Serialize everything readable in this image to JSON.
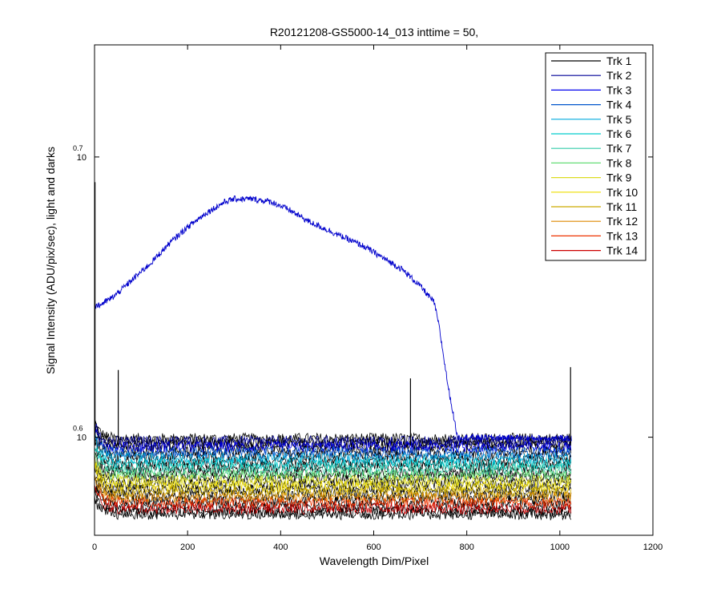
{
  "chart_data": {
    "type": "line",
    "title": "R20121208-GS5000-14_013 inttime = 50,",
    "xlabel": "Wavelength Dim/Pixel",
    "ylabel": "Signal Intensity (ADU/pix/sec), light and darks",
    "xlim": [
      0,
      1200
    ],
    "ylog": true,
    "ylim_exponent": [
      0.565,
      0.74
    ],
    "xticks": [
      "0",
      "200",
      "400",
      "600",
      "800",
      "1000",
      "1200"
    ],
    "yticks": [
      {
        "base": "10",
        "exponent": "0.6",
        "value_exponent": 0.6
      },
      {
        "base": "10",
        "exponent": "0.7",
        "value_exponent": 0.7
      }
    ],
    "grid": false,
    "legend_position": "top-right",
    "light_track": {
      "name": "Trk 2",
      "color": "#0000cc",
      "x": [
        0,
        10,
        40,
        80,
        120,
        160,
        200,
        240,
        280,
        300,
        340,
        380,
        420,
        460,
        500,
        540,
        580,
        620,
        660,
        700,
        730,
        740,
        760,
        780,
        1025
      ],
      "exponent": [
        0.647,
        0.647,
        0.65,
        0.656,
        0.662,
        0.669,
        0.675,
        0.68,
        0.684,
        0.685,
        0.685,
        0.684,
        0.681,
        0.677,
        0.674,
        0.671,
        0.668,
        0.664,
        0.66,
        0.654,
        0.648,
        0.64,
        0.618,
        0.6,
        0.5995
      ]
    },
    "spikes": [
      {
        "x": 1,
        "top_exponent": 0.691
      },
      {
        "x": 51,
        "top_exponent": 0.624
      },
      {
        "x": 679,
        "top_exponent": 0.621
      },
      {
        "x": 1023,
        "top_exponent": 0.625
      }
    ],
    "series": [
      {
        "name": "Trk 1",
        "color": "#000000",
        "plateau_exponent": 0.5995,
        "start_exponent": 0.606
      },
      {
        "name": "Trk 2",
        "color": "#000099",
        "plateau_exponent": 0.5985,
        "start_exponent": 0.605
      },
      {
        "name": "Trk 3",
        "color": "#0000ee",
        "plateau_exponent": 0.5965,
        "start_exponent": 0.604
      },
      {
        "name": "Trk 4",
        "color": "#0055cc",
        "plateau_exponent": 0.5945,
        "start_exponent": 0.602
      },
      {
        "name": "Trk 5",
        "color": "#00aadd",
        "plateau_exponent": 0.5925,
        "start_exponent": 0.6
      },
      {
        "name": "Trk 6",
        "color": "#00cccc",
        "plateau_exponent": 0.5905,
        "start_exponent": 0.598
      },
      {
        "name": "Trk 7",
        "color": "#33ccaa",
        "plateau_exponent": 0.5885,
        "start_exponent": 0.596
      },
      {
        "name": "Trk 8",
        "color": "#66dd77",
        "plateau_exponent": 0.5865,
        "start_exponent": 0.594
      },
      {
        "name": "Trk 9",
        "color": "#dddd22",
        "plateau_exponent": 0.5845,
        "start_exponent": 0.592
      },
      {
        "name": "Trk 10",
        "color": "#eedd00",
        "plateau_exponent": 0.5825,
        "start_exponent": 0.59
      },
      {
        "name": "Trk 11",
        "color": "#ccaa00",
        "plateau_exponent": 0.5805,
        "start_exponent": 0.588
      },
      {
        "name": "Trk 12",
        "color": "#dd8800",
        "plateau_exponent": 0.5785,
        "start_exponent": 0.586
      },
      {
        "name": "Trk 13",
        "color": "#ee3300",
        "plateau_exponent": 0.5765,
        "start_exponent": 0.584
      },
      {
        "name": "Trk 14",
        "color": "#cc0000",
        "plateau_exponent": 0.5745,
        "start_exponent": 0.582
      }
    ]
  }
}
